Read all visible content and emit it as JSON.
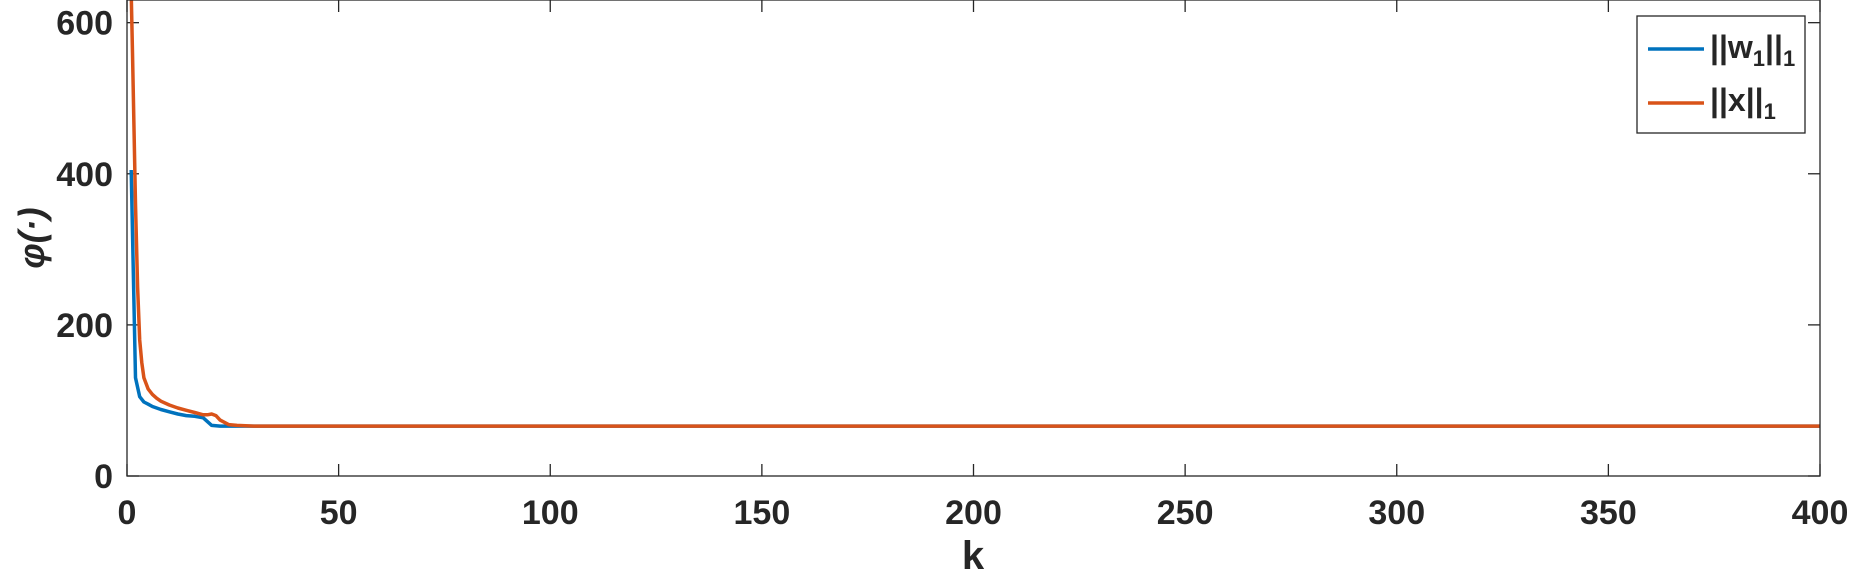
{
  "chart_data": {
    "type": "line",
    "title": "",
    "xlabel": "k",
    "ylabel": "φ(·)",
    "xlim": [
      0,
      400
    ],
    "ylim": [
      0,
      630
    ],
    "xticks": [
      0,
      50,
      100,
      150,
      200,
      250,
      300,
      350,
      400
    ],
    "xtick_labels": [
      "0",
      "50",
      "100",
      "150",
      "200",
      "250",
      "300",
      "350",
      "400"
    ],
    "yticks": [
      0,
      200,
      400,
      600
    ],
    "ytick_labels": [
      "0",
      "200",
      "400",
      "600"
    ],
    "grid": false,
    "legend": "top-right",
    "series": [
      {
        "name": "||w1||1",
        "name_main": "||w",
        "name_sub": "1",
        "name_mid": "||",
        "name_sub2": "1",
        "color": "#0072BD",
        "x": [
          1,
          2,
          3,
          4,
          5,
          6,
          8,
          10,
          12,
          14,
          16,
          18,
          19,
          20,
          22,
          24,
          26,
          30,
          400
        ],
        "y": [
          405,
          130,
          105,
          98,
          95,
          92,
          88,
          85,
          82,
          80,
          79,
          77,
          72,
          67,
          66,
          66,
          66,
          66,
          66
        ]
      },
      {
        "name": "||x||1",
        "name_main": "||x||",
        "name_sub": "1",
        "color": "#D95319",
        "x": [
          1,
          1.3,
          2,
          2.5,
          3,
          3.5,
          4,
          5,
          6,
          7,
          8,
          10,
          12,
          14,
          16,
          18,
          19,
          20,
          21,
          22,
          24,
          26,
          30,
          400
        ],
        "y": [
          640,
          560,
          360,
          250,
          180,
          150,
          130,
          115,
          108,
          103,
          99,
          94,
          90,
          87,
          84,
          81,
          81,
          82,
          80,
          74,
          68,
          67,
          66,
          66
        ]
      }
    ]
  }
}
